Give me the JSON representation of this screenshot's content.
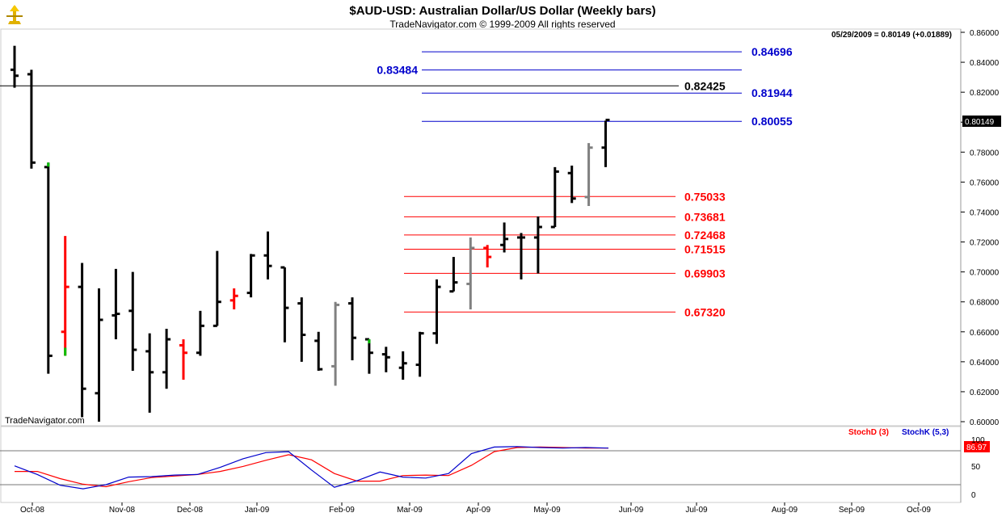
{
  "header": {
    "title": "$AUD-USD:  Australian Dollar/US Dollar  (Weekly bars)",
    "subtitle": "TradeNavigator.com © 1999-2009 All rights reserved",
    "last_quote": "05/29/2009 = 0.80149 (+0.01889)",
    "watermark": "TradeNavigator.com"
  },
  "indicator": {
    "stochd_label": "StochD (3)",
    "stochk_label": "StochK (5,3)",
    "stochd_color": "#ff0000",
    "stochk_color": "#0000cc",
    "value_badge": "86.97",
    "yticks": [
      "100",
      "50",
      "0"
    ]
  },
  "colors": {
    "up_bar": "#000000",
    "neutral_bar": "#808080",
    "reversal_bar": "#ff0000",
    "signal_tick": "#00c000",
    "fib_blue": "#0000cc",
    "fib_red": "#ff0000",
    "resistance_black": "#000000"
  },
  "chart_data": {
    "type": "ohlc-bar",
    "price_badge": "0.80149",
    "ylim": [
      0.6,
      0.86
    ],
    "yticks": [
      "0.86000",
      "0.84000",
      "0.82000",
      "0.80000",
      "0.78000",
      "0.76000",
      "0.74000",
      "0.72000",
      "0.70000",
      "0.68000",
      "0.66000",
      "0.64000",
      "0.62000",
      "0.60000"
    ],
    "xticks": [
      "Oct-08",
      "Nov-08",
      "Dec-08",
      "Jan-09",
      "Feb-09",
      "Mar-09",
      "Apr-09",
      "May-09",
      "Jun-09",
      "Jul-09",
      "Aug-09",
      "Sep-09",
      "Oct-09"
    ],
    "levels": [
      {
        "label": "0.84696",
        "value": 0.84696,
        "color": "#0000cc"
      },
      {
        "label": "0.83484",
        "value": 0.83484,
        "color": "#0000cc"
      },
      {
        "label": "0.82425",
        "value": 0.82425,
        "color": "#000000"
      },
      {
        "label": "0.81944",
        "value": 0.81944,
        "color": "#0000cc"
      },
      {
        "label": "0.80055",
        "value": 0.80055,
        "color": "#0000cc"
      },
      {
        "label": "0.75033",
        "value": 0.75033,
        "color": "#ff0000"
      },
      {
        "label": "0.73681",
        "value": 0.73681,
        "color": "#ff0000"
      },
      {
        "label": "0.72468",
        "value": 0.72468,
        "color": "#ff0000"
      },
      {
        "label": "0.71515",
        "value": 0.71515,
        "color": "#ff0000"
      },
      {
        "label": "0.69903",
        "value": 0.69903,
        "color": "#ff0000"
      },
      {
        "label": "0.67320",
        "value": 0.6732,
        "color": "#ff0000"
      }
    ],
    "bars": [
      {
        "h": 0.851,
        "l": 0.823,
        "o": 0.835,
        "c": 0.831,
        "k": "b"
      },
      {
        "h": 0.835,
        "l": 0.769,
        "o": 0.832,
        "c": 0.773,
        "k": "b"
      },
      {
        "h": 0.773,
        "l": 0.632,
        "o": 0.77,
        "c": 0.644,
        "k": "b",
        "t": "up"
      },
      {
        "h": 0.724,
        "l": 0.644,
        "o": 0.66,
        "c": 0.69,
        "k": "r",
        "t": "down"
      },
      {
        "h": 0.706,
        "l": 0.603,
        "o": 0.69,
        "c": 0.622,
        "k": "b"
      },
      {
        "h": 0.689,
        "l": 0.6,
        "o": 0.619,
        "c": 0.668,
        "k": "b"
      },
      {
        "h": 0.702,
        "l": 0.655,
        "o": 0.671,
        "c": 0.672,
        "k": "b"
      },
      {
        "h": 0.7,
        "l": 0.634,
        "o": 0.674,
        "c": 0.648,
        "k": "b"
      },
      {
        "h": 0.659,
        "l": 0.606,
        "o": 0.647,
        "c": 0.633,
        "k": "b"
      },
      {
        "h": 0.662,
        "l": 0.622,
        "o": 0.633,
        "c": 0.655,
        "k": "b"
      },
      {
        "h": 0.655,
        "l": 0.628,
        "o": 0.651,
        "c": 0.646,
        "k": "r"
      },
      {
        "h": 0.674,
        "l": 0.644,
        "o": 0.646,
        "c": 0.664,
        "k": "b"
      },
      {
        "h": 0.714,
        "l": 0.664,
        "o": 0.664,
        "c": 0.68,
        "k": "b"
      },
      {
        "h": 0.689,
        "l": 0.675,
        "o": 0.681,
        "c": 0.684,
        "k": "r"
      },
      {
        "h": 0.712,
        "l": 0.683,
        "o": 0.686,
        "c": 0.711,
        "k": "b"
      },
      {
        "h": 0.727,
        "l": 0.695,
        "o": 0.711,
        "c": 0.704,
        "k": "b"
      },
      {
        "h": 0.703,
        "l": 0.653,
        "o": 0.703,
        "c": 0.676,
        "k": "b"
      },
      {
        "h": 0.683,
        "l": 0.64,
        "o": 0.679,
        "c": 0.658,
        "k": "b"
      },
      {
        "h": 0.66,
        "l": 0.634,
        "o": 0.654,
        "c": 0.635,
        "k": "b"
      },
      {
        "h": 0.68,
        "l": 0.624,
        "o": 0.637,
        "c": 0.678,
        "k": "g"
      },
      {
        "h": 0.683,
        "l": 0.641,
        "o": 0.679,
        "c": 0.656,
        "k": "b"
      },
      {
        "h": 0.655,
        "l": 0.632,
        "o": 0.655,
        "c": 0.646,
        "k": "b",
        "t": "up"
      },
      {
        "h": 0.65,
        "l": 0.633,
        "o": 0.645,
        "c": 0.643,
        "k": "b"
      },
      {
        "h": 0.647,
        "l": 0.628,
        "o": 0.636,
        "c": 0.639,
        "k": "b"
      },
      {
        "h": 0.66,
        "l": 0.63,
        "o": 0.638,
        "c": 0.659,
        "k": "b"
      },
      {
        "h": 0.695,
        "l": 0.652,
        "o": 0.659,
        "c": 0.69,
        "k": "b"
      },
      {
        "h": 0.71,
        "l": 0.687,
        "o": 0.687,
        "c": 0.693,
        "k": "b"
      },
      {
        "h": 0.723,
        "l": 0.675,
        "o": 0.692,
        "c": 0.716,
        "k": "g"
      },
      {
        "h": 0.718,
        "l": 0.703,
        "o": 0.716,
        "c": 0.71,
        "k": "r"
      },
      {
        "h": 0.733,
        "l": 0.713,
        "o": 0.718,
        "c": 0.722,
        "k": "b"
      },
      {
        "h": 0.726,
        "l": 0.695,
        "o": 0.723,
        "c": 0.723,
        "k": "b"
      },
      {
        "h": 0.737,
        "l": 0.699,
        "o": 0.723,
        "c": 0.73,
        "k": "b"
      },
      {
        "h": 0.77,
        "l": 0.73,
        "o": 0.73,
        "c": 0.767,
        "k": "b"
      },
      {
        "h": 0.771,
        "l": 0.746,
        "o": 0.766,
        "c": 0.749,
        "k": "b"
      },
      {
        "h": 0.786,
        "l": 0.744,
        "o": 0.75,
        "c": 0.783,
        "k": "g"
      },
      {
        "h": 0.801,
        "l": 0.77,
        "o": 0.783,
        "c": 0.8015,
        "k": "b"
      }
    ],
    "stochK": [
      56,
      39,
      18,
      11,
      19,
      34,
      35,
      38,
      39,
      53,
      70,
      82,
      84,
      48,
      14,
      27,
      44,
      34,
      32,
      41,
      80,
      93,
      94,
      92,
      91,
      92,
      91
    ],
    "stochD": [
      45,
      45,
      31,
      20,
      15,
      25,
      33,
      36,
      39,
      45,
      55,
      67,
      78,
      68,
      41,
      26,
      26,
      37,
      38,
      37,
      57,
      84,
      92,
      93,
      92,
      91,
      91
    ]
  }
}
